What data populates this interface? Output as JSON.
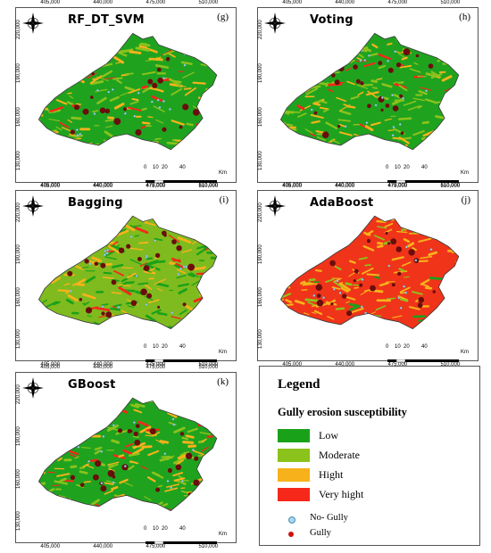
{
  "panels": [
    {
      "title": "RF_DT_SVM",
      "letter": "(g)",
      "scheme": "green"
    },
    {
      "title": "Voting",
      "letter": "(h)",
      "scheme": "green"
    },
    {
      "title": "Bagging",
      "letter": "(i)",
      "scheme": "mixed"
    },
    {
      "title": "AdaBoost",
      "letter": "(j)",
      "scheme": "red"
    },
    {
      "title": "GBoost",
      "letter": "(k)",
      "scheme": "green"
    }
  ],
  "axes": {
    "x_ticks": [
      "405,000",
      "440,000",
      "475,000",
      "510,000"
    ],
    "y_ticks": [
      "220,000",
      "190,000",
      "160,000",
      "130,000"
    ]
  },
  "scalebar": {
    "labels": [
      "0",
      "10",
      "20",
      "40"
    ],
    "unit": "Km"
  },
  "legend": {
    "title": "Legend",
    "subtitle": "Gully erosion susceptibility",
    "classes": [
      {
        "label": "Low",
        "color": "#1aa11a"
      },
      {
        "label": "Moderate",
        "color": "#8cc21c"
      },
      {
        "label": "Hight",
        "color": "#f7b21b"
      },
      {
        "label": "Very hight",
        "color": "#f5281a"
      }
    ],
    "points": [
      {
        "label": "No- Gully",
        "color": "#a8d8ee"
      },
      {
        "label": "Gully",
        "color": "#cc1111"
      }
    ]
  }
}
